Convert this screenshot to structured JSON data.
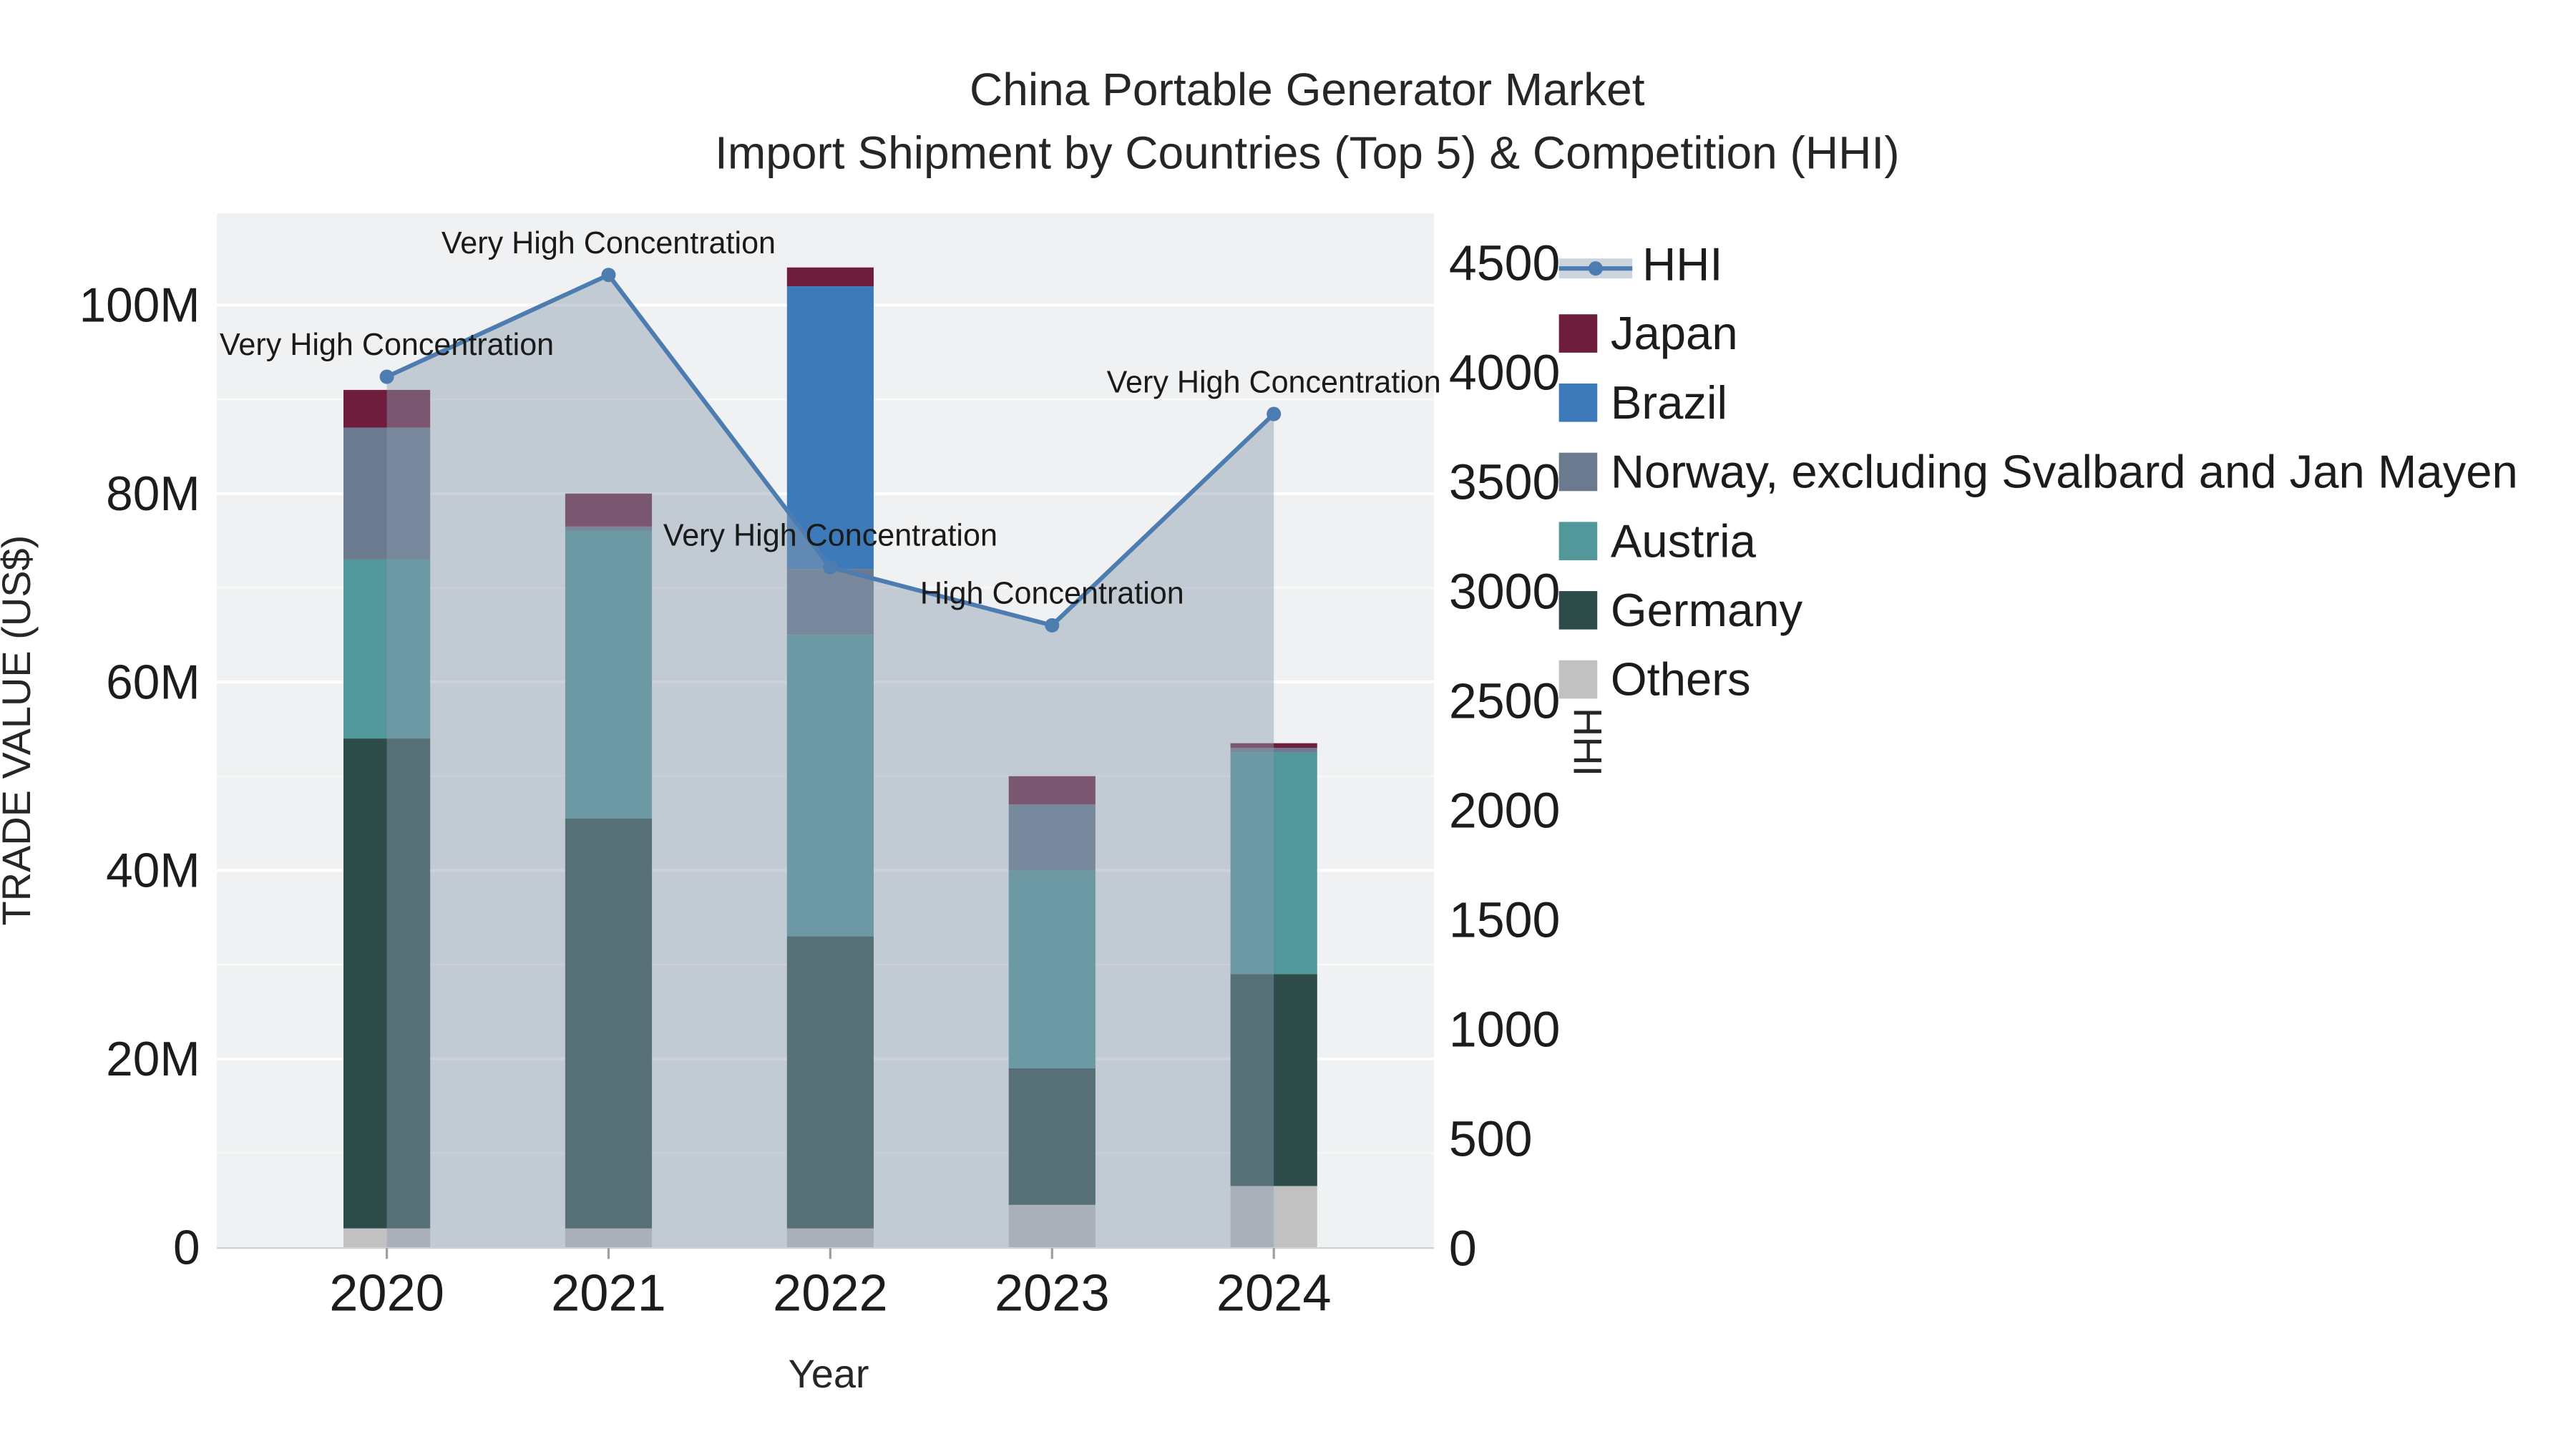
{
  "title": "China Portable Generator Market",
  "subtitle": "Import Shipment by Countries (Top 5) & Competition (HHI)",
  "axes": {
    "left_label": "TRADE VALUE (US$)",
    "right_label": "HHI",
    "x_label": "Year"
  },
  "colors": {
    "plot_background": "#eff1f2",
    "gridline": "#ffffff",
    "axis_line": "#cfd2d4",
    "hhi_line": "#4d7db0",
    "hhi_area": "rgba(140,155,175,0.45)",
    "legend_band": "#ccd5de"
  },
  "chart_data": {
    "type": "combo-stacked-bar-line",
    "categories": [
      "2020",
      "2021",
      "2022",
      "2023",
      "2024"
    ],
    "bar_value_unit": "M US$ (trade value)",
    "series": [
      {
        "name": "Others",
        "color": "#c2c1c1",
        "values": [
          2,
          2,
          2,
          4.5,
          6.5
        ]
      },
      {
        "name": "Germany",
        "color": "#2d4b49",
        "values": [
          52,
          43.5,
          31,
          14.5,
          22.5
        ]
      },
      {
        "name": "Austria",
        "color": "#52989a",
        "values": [
          19,
          30.5,
          32,
          21,
          23.5
        ]
      },
      {
        "name": "Norway, excluding Svalbard and Jan Mayen",
        "color": "#6b7a8e",
        "values": [
          14,
          0.5,
          7,
          7,
          0.5
        ]
      },
      {
        "name": "Brazil",
        "color": "#3d7ab9",
        "values": [
          0,
          0,
          30,
          0,
          0
        ]
      },
      {
        "name": "Japan",
        "color": "#6e1e3c",
        "values": [
          4,
          3.5,
          2,
          3,
          0.5
        ]
      }
    ],
    "line": {
      "name": "HHI",
      "color": "#4d7db0",
      "area_fill": "rgba(140,155,175,0.45)",
      "values": [
        3975,
        4440,
        3105,
        2840,
        3805
      ]
    },
    "annotations": [
      "Very High Concentration",
      "Very High Concentration",
      "Very High Concentration",
      "High Concentration",
      "Very High Concentration"
    ],
    "left_axis": {
      "label": "TRADE VALUE (US$)",
      "ticks": [
        0,
        20,
        40,
        60,
        80,
        100
      ],
      "tick_labels": [
        "0",
        "20M",
        "40M",
        "60M",
        "80M",
        "100M"
      ],
      "range": [
        0,
        110
      ]
    },
    "right_axis": {
      "label": "HHI",
      "ticks": [
        0,
        500,
        1000,
        1500,
        2000,
        2500,
        3000,
        3500,
        4000,
        4500
      ],
      "tick_labels": [
        "0",
        "500",
        "1000",
        "1500",
        "2000",
        "2500",
        "3000",
        "3500",
        "4000",
        "4500"
      ],
      "range": [
        0,
        4500
      ]
    },
    "x_axis": {
      "label": "Year"
    },
    "legend_position": "top-right",
    "grid": true
  }
}
